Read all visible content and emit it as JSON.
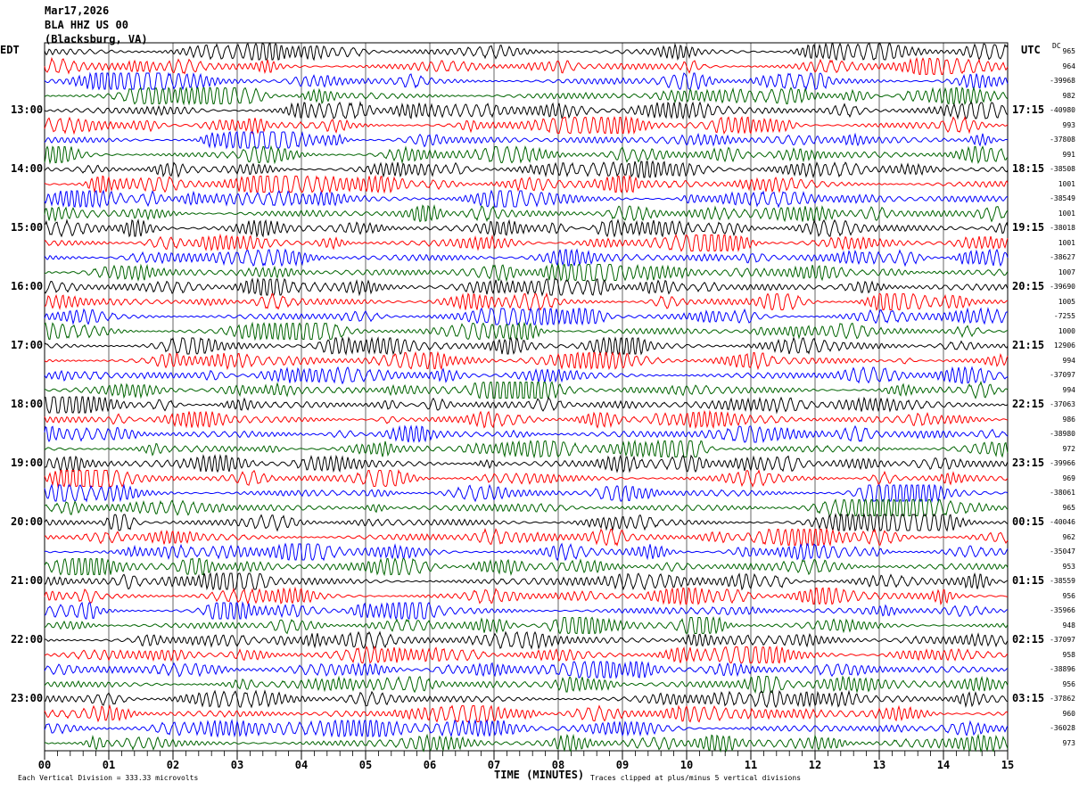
{
  "header": {
    "date": "Mar17,2026",
    "station": "BLA HHZ US 00",
    "location": "(Blacksburg, VA)"
  },
  "left_timezone": "EDT",
  "right_timezone": "UTC",
  "dc_label": "DC",
  "footer": {
    "scale": "Each Vertical Division =  333.33 microvolts",
    "clip_note": "Traces clipped at plus/minus 5 vertical divisions"
  },
  "colors": {
    "trace_cycle": [
      "#000000",
      "#ff0000",
      "#0000ff",
      "#006400"
    ],
    "grid": "#000000"
  },
  "chart_data": {
    "type": "line",
    "subtype": "helicorder",
    "xlabel": "TIME (MINUTES)",
    "xlim": [
      0,
      15
    ],
    "x_ticks": [
      "00",
      "01",
      "02",
      "03",
      "04",
      "05",
      "06",
      "07",
      "08",
      "09",
      "10",
      "11",
      "12",
      "13",
      "14",
      "15"
    ],
    "traces_per_hour": 4,
    "trace_count": 48,
    "left_hour_labels": [
      {
        "row": 4,
        "label": "13:00"
      },
      {
        "row": 8,
        "label": "14:00"
      },
      {
        "row": 12,
        "label": "15:00"
      },
      {
        "row": 16,
        "label": "16:00"
      },
      {
        "row": 20,
        "label": "17:00"
      },
      {
        "row": 24,
        "label": "18:00"
      },
      {
        "row": 28,
        "label": "19:00"
      },
      {
        "row": 32,
        "label": "20:00"
      },
      {
        "row": 36,
        "label": "21:00"
      },
      {
        "row": 40,
        "label": "22:00"
      },
      {
        "row": 44,
        "label": "23:00"
      }
    ],
    "right_hour_labels": [
      {
        "row": 4,
        "label": "17:15"
      },
      {
        "row": 8,
        "label": "18:15"
      },
      {
        "row": 12,
        "label": "19:15"
      },
      {
        "row": 16,
        "label": "20:15"
      },
      {
        "row": 20,
        "label": "21:15"
      },
      {
        "row": 24,
        "label": "22:15"
      },
      {
        "row": 28,
        "label": "23:15"
      },
      {
        "row": 32,
        "label": "00:15"
      },
      {
        "row": 36,
        "label": "01:15"
      },
      {
        "row": 40,
        "label": "02:15"
      },
      {
        "row": 44,
        "label": "03:15"
      }
    ],
    "dc_offsets": [
      "965",
      "964",
      "-39968",
      "982",
      "-40980",
      "993",
      "-37808",
      "991",
      "-38508",
      "1001",
      "-38549",
      "1001",
      "-38018",
      "1001",
      "-38627",
      "1007",
      "-39690",
      "1005",
      "-7255",
      "1000",
      "12906",
      "994",
      "-37097",
      "994",
      "-37063",
      "986",
      "-38980",
      "972",
      "-39966",
      "969",
      "-38061",
      "965",
      "-40046",
      "962",
      "-35047",
      "953",
      "-38559",
      "956",
      "-35966",
      "948",
      "-37097",
      "958",
      "-38896",
      "956",
      "-37862",
      "960",
      "-36028",
      "973"
    ]
  }
}
